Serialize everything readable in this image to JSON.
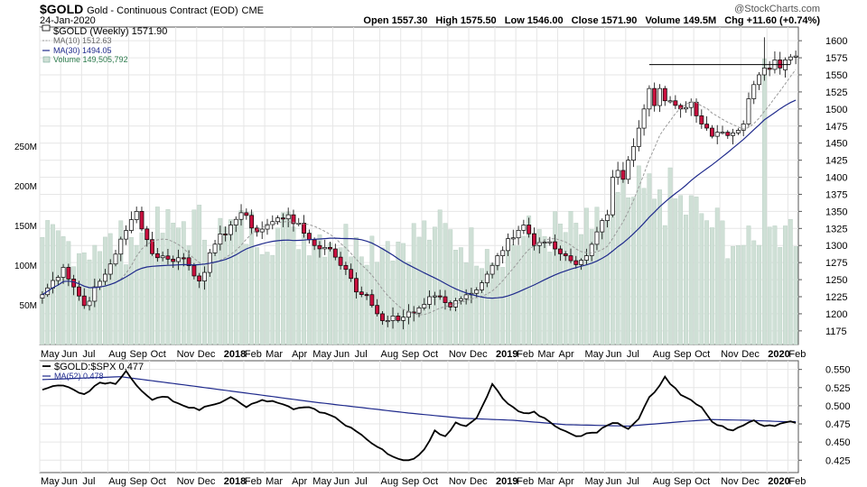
{
  "header": {
    "symbol": "$GOLD",
    "description": "Gold - Continuous Contract (EOD)",
    "exchange": "CME",
    "date": "24-Jan-2020",
    "watermark": "@StockCharts.com",
    "ohlc": {
      "open": "Open 1557.30",
      "high": "High 1575.50",
      "low": "Low 1546.00",
      "close": "Close 1571.90",
      "volume": "Volume 149.5M",
      "change": "Chg +11.60 (+0.74%)"
    }
  },
  "legend_main": {
    "price": "$GOLD (Weekly) 1571.90",
    "ma10": "MA(10) 1512.63",
    "ma30": "MA(30) 1494.05",
    "volume": "Volume 149,505,792"
  },
  "legend_lower": {
    "ratio": "$GOLD:$SPX 0.477",
    "ma52": "MA(52) 0.478"
  },
  "colors": {
    "up": "#ffffff",
    "down": "#c8103e",
    "candle_outline": "#000000",
    "ma10": "#999999",
    "ma30": "#1f2a8c",
    "volume": "#cfe0d6",
    "ratio": "#000000",
    "ma52": "#1f2a8c",
    "grid": "#e6e6e6"
  },
  "chart_data": [
    {
      "type": "candlestick",
      "title": "$GOLD (Weekly) 1571.90",
      "ylim": [
        1155,
        1620
      ],
      "y_ticks": [
        1175,
        1200,
        1225,
        1250,
        1275,
        1300,
        1325,
        1350,
        1375,
        1400,
        1425,
        1450,
        1475,
        1500,
        1525,
        1550,
        1575,
        1600
      ],
      "vol_ticks": [
        {
          "v": 50,
          "label": "50M"
        },
        {
          "v": 100,
          "label": "100M"
        },
        {
          "v": 150,
          "label": "150M"
        },
        {
          "v": 200,
          "label": "200M"
        },
        {
          "v": 250,
          "label": "250M"
        }
      ],
      "vol_max": 400,
      "x_months": [
        {
          "w": 0,
          "label": "May"
        },
        {
          "w": 4,
          "label": "Jun"
        },
        {
          "w": 8,
          "label": "Jul"
        },
        {
          "w": 13,
          "label": "Aug"
        },
        {
          "w": 17,
          "label": "Sep"
        },
        {
          "w": 21,
          "label": "Oct"
        },
        {
          "w": 26,
          "label": "Nov"
        },
        {
          "w": 30,
          "label": "Dec"
        },
        {
          "w": 35,
          "label": "2018"
        },
        {
          "w": 39,
          "label": "Feb"
        },
        {
          "w": 43,
          "label": "Mar"
        },
        {
          "w": 48,
          "label": "Apr"
        },
        {
          "w": 52,
          "label": "May"
        },
        {
          "w": 56,
          "label": "Jun"
        },
        {
          "w": 60,
          "label": "Jul"
        },
        {
          "w": 65,
          "label": "Aug"
        },
        {
          "w": 69,
          "label": "Sep"
        },
        {
          "w": 73,
          "label": "Oct"
        },
        {
          "w": 78,
          "label": "Nov"
        },
        {
          "w": 82,
          "label": "Dec"
        },
        {
          "w": 87,
          "label": "2019"
        },
        {
          "w": 91,
          "label": "Feb"
        },
        {
          "w": 95,
          "label": "Mar"
        },
        {
          "w": 99,
          "label": "Apr"
        },
        {
          "w": 104,
          "label": "May"
        },
        {
          "w": 108,
          "label": "Jun"
        },
        {
          "w": 112,
          "label": "Jul"
        },
        {
          "w": 117,
          "label": "Aug"
        },
        {
          "w": 121,
          "label": "Sep"
        },
        {
          "w": 125,
          "label": "Oct"
        },
        {
          "w": 130,
          "label": "Nov"
        },
        {
          "w": 134,
          "label": "Dec"
        },
        {
          "w": 139,
          "label": "2020"
        },
        {
          "w": 143,
          "label": "Feb"
        }
      ],
      "week_count": 145,
      "close_key": [
        [
          0,
          1228
        ],
        [
          4,
          1268
        ],
        [
          8,
          1212
        ],
        [
          12,
          1258
        ],
        [
          16,
          1322
        ],
        [
          18,
          1350
        ],
        [
          21,
          1288
        ],
        [
          24,
          1280
        ],
        [
          27,
          1282
        ],
        [
          30,
          1248
        ],
        [
          33,
          1302
        ],
        [
          36,
          1330
        ],
        [
          38,
          1348
        ],
        [
          41,
          1320
        ],
        [
          44,
          1335
        ],
        [
          47,
          1345
        ],
        [
          50,
          1318
        ],
        [
          52,
          1300
        ],
        [
          55,
          1295
        ],
        [
          58,
          1265
        ],
        [
          60,
          1232
        ],
        [
          62,
          1228
        ],
        [
          64,
          1200
        ],
        [
          66,
          1190
        ],
        [
          69,
          1195
        ],
        [
          71,
          1201
        ],
        [
          74,
          1225
        ],
        [
          76,
          1225
        ],
        [
          78,
          1210
        ],
        [
          80,
          1222
        ],
        [
          82,
          1230
        ],
        [
          85,
          1258
        ],
        [
          87,
          1285
        ],
        [
          89,
          1310
        ],
        [
          92,
          1330
        ],
        [
          94,
          1300
        ],
        [
          96,
          1305
        ],
        [
          98,
          1295
        ],
        [
          100,
          1285
        ],
        [
          102,
          1272
        ],
        [
          104,
          1285
        ],
        [
          106,
          1320
        ],
        [
          108,
          1345
        ],
        [
          109,
          1400
        ],
        [
          110,
          1410
        ],
        [
          111,
          1397
        ],
        [
          112,
          1425
        ],
        [
          113,
          1445
        ],
        [
          115,
          1500
        ],
        [
          116,
          1530
        ],
        [
          117,
          1505
        ],
        [
          118,
          1530
        ],
        [
          119,
          1512
        ],
        [
          120,
          1512
        ],
        [
          122,
          1500
        ],
        [
          124,
          1510
        ],
        [
          125,
          1490
        ],
        [
          127,
          1472
        ],
        [
          128,
          1460
        ],
        [
          130,
          1466
        ],
        [
          132,
          1465
        ],
        [
          134,
          1478
        ],
        [
          135,
          1515
        ],
        [
          137,
          1550
        ],
        [
          138,
          1560
        ],
        [
          139,
          1558
        ],
        [
          140,
          1571.9
        ],
        [
          141,
          1560
        ],
        [
          142,
          1571.9
        ]
      ],
      "volume_key": [
        [
          0,
          135
        ],
        [
          10,
          125
        ],
        [
          17,
          135
        ],
        [
          27,
          155
        ],
        [
          35,
          148
        ],
        [
          48,
          148
        ],
        [
          60,
          135
        ],
        [
          66,
          130
        ],
        [
          75,
          148
        ],
        [
          85,
          120
        ],
        [
          95,
          145
        ],
        [
          105,
          145
        ],
        [
          112,
          185
        ],
        [
          118,
          195
        ],
        [
          126,
          165
        ],
        [
          134,
          125
        ],
        [
          137,
          125
        ],
        [
          138,
          360
        ],
        [
          139,
          148
        ],
        [
          140,
          149.5
        ],
        [
          142,
          149.5
        ]
      ],
      "last_bar": {
        "open": 1557.3,
        "high": 1575.5,
        "low": 1546.0,
        "close": 1571.9,
        "volume": 149.5
      },
      "resistance_level": 1565
    },
    {
      "type": "line",
      "title": "$GOLD:$SPX 0.477",
      "ylim": [
        0.408,
        0.562
      ],
      "y_ticks": [
        0.425,
        0.45,
        0.475,
        0.5,
        0.525,
        0.55
      ],
      "series": [
        {
          "name": "$GOLD:$SPX",
          "key": [
            [
              0,
              0.522
            ],
            [
              3,
              0.528
            ],
            [
              6,
              0.522
            ],
            [
              8,
              0.516
            ],
            [
              11,
              0.532
            ],
            [
              14,
              0.53
            ],
            [
              16,
              0.548
            ],
            [
              18,
              0.528
            ],
            [
              21,
              0.508
            ],
            [
              24,
              0.512
            ],
            [
              27,
              0.5
            ],
            [
              30,
              0.494
            ],
            [
              33,
              0.502
            ],
            [
              36,
              0.512
            ],
            [
              39,
              0.498
            ],
            [
              42,
              0.508
            ],
            [
              45,
              0.504
            ],
            [
              48,
              0.495
            ],
            [
              51,
              0.498
            ],
            [
              54,
              0.49
            ],
            [
              57,
              0.478
            ],
            [
              59,
              0.47
            ],
            [
              61,
              0.46
            ],
            [
              63,
              0.448
            ],
            [
              65,
              0.44
            ],
            [
              67,
              0.43
            ],
            [
              69,
              0.425
            ],
            [
              71,
              0.427
            ],
            [
              73,
              0.44
            ],
            [
              75,
              0.466
            ],
            [
              77,
              0.458
            ],
            [
              79,
              0.477
            ],
            [
              81,
              0.472
            ],
            [
              83,
              0.483
            ],
            [
              86,
              0.53
            ],
            [
              88,
              0.51
            ],
            [
              90,
              0.498
            ],
            [
              92,
              0.49
            ],
            [
              94,
              0.492
            ],
            [
              96,
              0.483
            ],
            [
              98,
              0.472
            ],
            [
              100,
              0.465
            ],
            [
              102,
              0.458
            ],
            [
              104,
              0.462
            ],
            [
              106,
              0.463
            ],
            [
              108,
              0.473
            ],
            [
              110,
              0.476
            ],
            [
              112,
              0.468
            ],
            [
              114,
              0.482
            ],
            [
              116,
              0.512
            ],
            [
              118,
              0.528
            ],
            [
              119,
              0.54
            ],
            [
              120,
              0.53
            ],
            [
              122,
              0.515
            ],
            [
              124,
              0.508
            ],
            [
              126,
              0.498
            ],
            [
              128,
              0.478
            ],
            [
              130,
              0.472
            ],
            [
              132,
              0.466
            ],
            [
              134,
              0.473
            ],
            [
              136,
              0.48
            ],
            [
              138,
              0.472
            ],
            [
              140,
              0.472
            ],
            [
              142,
              0.477
            ]
          ]
        },
        {
          "name": "MA(52)",
          "key": [
            [
              0,
              0.536
            ],
            [
              15,
              0.54
            ],
            [
              30,
              0.526
            ],
            [
              52,
              0.505
            ],
            [
              70,
              0.49
            ],
            [
              80,
              0.483
            ],
            [
              90,
              0.48
            ],
            [
              100,
              0.474
            ],
            [
              112,
              0.472
            ],
            [
              122,
              0.478
            ],
            [
              128,
              0.481
            ],
            [
              135,
              0.48
            ],
            [
              142,
              0.478
            ]
          ]
        }
      ]
    }
  ]
}
